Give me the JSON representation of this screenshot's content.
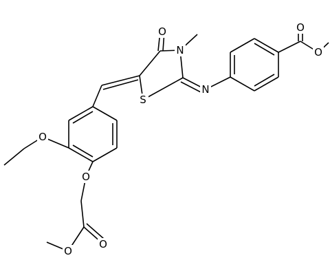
{
  "atoms": [
    {
      "label": "O"
    },
    {
      "label": "O"
    },
    {
      "label": "O"
    },
    {
      "label": "N"
    },
    {
      "label": "S"
    },
    {
      "label": "N"
    },
    {
      "label": "O"
    },
    {
      "label": "O"
    },
    {
      "label": "O"
    },
    {
      "label": "O"
    }
  ]
}
